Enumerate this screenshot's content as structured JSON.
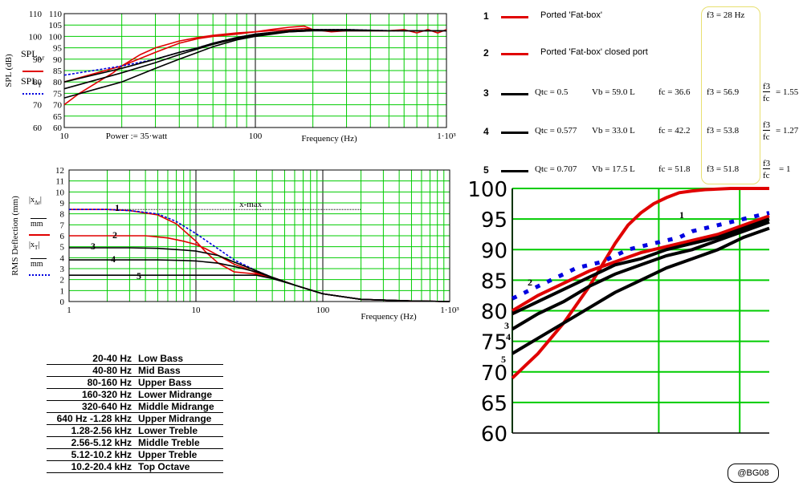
{
  "chart_data": [
    {
      "type": "line",
      "ylabel": "SPL (dB)",
      "xlabel": "Frequency (Hz)",
      "x_scale": "log",
      "xlim": [
        10,
        1000
      ],
      "ylim": [
        60,
        110
      ],
      "x_ticks": [
        "10",
        "100",
        "1·10³"
      ],
      "y_ticks": [
        "60",
        "65",
        "70",
        "75",
        "80",
        "85",
        "90",
        "95",
        "100",
        "105",
        "110"
      ],
      "y_inner_labels": [
        "110",
        "100",
        "90",
        "80",
        "70",
        "60"
      ],
      "annotation": "Power := 35·watt",
      "legend": [
        "SPL_o,r",
        "SPL_T"
      ],
      "series": [
        {
          "color": "#e00000",
          "x": [
            10,
            12,
            15,
            18,
            20,
            25,
            30,
            40,
            50,
            60,
            80,
            100,
            120,
            150,
            180,
            200,
            250,
            300,
            400,
            500,
            600,
            700,
            800,
            900,
            1000
          ],
          "y": [
            70,
            75,
            80,
            84,
            87,
            92,
            95,
            98,
            99.5,
            100.5,
            101.5,
            102,
            102.5,
            103,
            103.5,
            103,
            102.5,
            102.5,
            102.5,
            102.5,
            102.5,
            102.5,
            102.5,
            102.5,
            102.5
          ]
        },
        {
          "color": "#e00000",
          "x": [
            10,
            20,
            30,
            40,
            50,
            60,
            80,
            100,
            120,
            150,
            180,
            200,
            250,
            300,
            400,
            500,
            600,
            700,
            800,
            900,
            1000
          ],
          "y": [
            80,
            87,
            93,
            97,
            99,
            100,
            101,
            102,
            103,
            104,
            104.5,
            103,
            102,
            102.5,
            102.5,
            102.5,
            103,
            101.5,
            103,
            101.5,
            103
          ]
        },
        {
          "color": "#0000e0",
          "x": [
            10,
            20,
            30,
            40,
            50,
            60,
            80,
            100,
            150,
            200,
            300,
            500,
            700,
            1000
          ],
          "y": [
            83,
            87,
            90,
            93,
            95,
            97,
            99.5,
            101,
            102.5,
            103,
            103,
            102.5,
            102.5,
            102.5
          ]
        },
        {
          "color": "#000000",
          "x": [
            10,
            20,
            30,
            40,
            50,
            60,
            80,
            100,
            150,
            200,
            300,
            500,
            1000
          ],
          "y": [
            80,
            86,
            90,
            93,
            95,
            97,
            99.5,
            101,
            102.5,
            103,
            103,
            102.5,
            102.5
          ]
        },
        {
          "color": "#000000",
          "x": [
            10,
            20,
            30,
            40,
            50,
            60,
            80,
            100,
            150,
            200,
            300,
            500,
            1000
          ],
          "y": [
            77,
            84,
            88.5,
            92,
            94.5,
            96.5,
            99,
            100.5,
            102,
            102.5,
            102.5,
            102.5,
            102.5
          ]
        },
        {
          "color": "#000000",
          "x": [
            10,
            20,
            30,
            40,
            50,
            60,
            80,
            100,
            150,
            200,
            300,
            500,
            1000
          ],
          "y": [
            73,
            80,
            86,
            90,
            93,
            95.5,
            98.5,
            100,
            102,
            102.5,
            102.5,
            102.5,
            102.5
          ]
        }
      ]
    },
    {
      "type": "line",
      "ylabel": "RMS Deflection (mm)",
      "xlabel": "Frequency (Hz)",
      "x_scale": "log",
      "xlim": [
        1,
        1000
      ],
      "ylim": [
        0,
        12
      ],
      "x_ticks": [
        "1",
        "10",
        "100",
        "1·10³"
      ],
      "y_ticks": [
        "0",
        "1",
        "2",
        "3",
        "4",
        "5",
        "6",
        "7",
        "8",
        "9",
        "10",
        "11",
        "12"
      ],
      "annotation": "x-max",
      "xmax_value": 8.4,
      "curve_labels": [
        "1",
        "2",
        "3",
        "4",
        "5"
      ],
      "legend": [
        "|x_Δr| / mm",
        "|x_T| / mm"
      ],
      "series": [
        {
          "color": "#e00000",
          "x": [
            1,
            2,
            3,
            5,
            7,
            10,
            12,
            15,
            18,
            20,
            25,
            30,
            40,
            60,
            100,
            200,
            500,
            1000
          ],
          "y": [
            8.4,
            8.4,
            8.3,
            7.9,
            7.1,
            5.5,
            4.5,
            3.5,
            3,
            2.7,
            2.6,
            2.5,
            2.2,
            1.5,
            0.7,
            0.2,
            0.05,
            0
          ]
        },
        {
          "color": "#0000e0",
          "x": [
            1,
            2,
            3,
            5,
            7,
            10,
            15,
            20,
            30,
            40,
            60,
            100,
            200,
            500,
            1000
          ],
          "y": [
            8.4,
            8.4,
            8.3,
            8,
            7.3,
            6.2,
            4.8,
            3.8,
            2.8,
            2.2,
            1.5,
            0.7,
            0.2,
            0.05,
            0
          ]
        },
        {
          "color": "#e00000",
          "x": [
            1,
            2,
            4,
            6,
            8,
            10,
            12,
            15,
            20,
            25,
            30,
            40,
            60,
            100,
            200,
            500,
            1000
          ],
          "y": [
            6,
            6,
            6,
            5.8,
            5.5,
            5.2,
            4.8,
            4.2,
            3.4,
            3,
            2.6,
            2.2,
            1.5,
            0.7,
            0.2,
            0.05,
            0
          ]
        },
        {
          "color": "#000000",
          "x": [
            1,
            3,
            5,
            8,
            10,
            15,
            20,
            30,
            40,
            60,
            100,
            200,
            500,
            1000
          ],
          "y": [
            4.9,
            4.9,
            4.85,
            4.7,
            4.6,
            4.2,
            3.6,
            2.8,
            2.2,
            1.5,
            0.7,
            0.2,
            0.05,
            0
          ]
        },
        {
          "color": "#000000",
          "x": [
            1,
            3,
            5,
            8,
            10,
            15,
            20,
            30,
            40,
            60,
            100,
            200,
            500,
            1000
          ],
          "y": [
            3.8,
            3.8,
            3.8,
            3.75,
            3.7,
            3.5,
            3.2,
            2.7,
            2.2,
            1.5,
            0.7,
            0.2,
            0.05,
            0
          ]
        },
        {
          "color": "#000000",
          "x": [
            1,
            5,
            10,
            15,
            20,
            22,
            30,
            40,
            60,
            100,
            200,
            500,
            1000
          ],
          "y": [
            2.4,
            2.4,
            2.4,
            2.4,
            2.4,
            2.4,
            2.4,
            2.1,
            1.5,
            0.7,
            0.2,
            0.05,
            0
          ]
        }
      ]
    },
    {
      "type": "line",
      "ylim": [
        60,
        100
      ],
      "y_ticks": [
        "100",
        "95",
        "90",
        "85",
        "80",
        "75",
        "70",
        "65",
        "60"
      ],
      "curve_labels": [
        "1",
        "2",
        "3",
        "4",
        "5"
      ],
      "series": [
        {
          "color": "#e00000",
          "x": [
            0,
            0.05,
            0.1,
            0.15,
            0.2,
            0.25,
            0.3,
            0.35,
            0.4,
            0.45,
            0.5,
            0.55,
            0.6,
            0.65,
            0.7,
            0.75,
            0.8,
            0.85,
            0.9,
            1
          ],
          "y": [
            69,
            71,
            73,
            75.5,
            78,
            81,
            84,
            87.5,
            91,
            94,
            96,
            97.5,
            98.5,
            99.3,
            99.6,
            99.8,
            99.9,
            100,
            100,
            100
          ]
        },
        {
          "color": "#e00000",
          "x": [
            0,
            0.1,
            0.2,
            0.3,
            0.4,
            0.5,
            0.6,
            0.7,
            0.8,
            0.9,
            1
          ],
          "y": [
            80,
            82.5,
            84.5,
            86.5,
            88,
            89.5,
            90.5,
            91.5,
            92.5,
            94,
            95.5
          ]
        },
        {
          "color": "#0000e0",
          "x": [
            0,
            0.05,
            0.1,
            0.15,
            0.2,
            0.25,
            0.3,
            0.35,
            0.4,
            0.45,
            0.5,
            0.55,
            0.6,
            0.65,
            0.7,
            0.75,
            0.8,
            0.85,
            0.9,
            0.95,
            1
          ],
          "y": [
            82,
            83,
            84,
            85,
            86,
            87,
            87.5,
            88,
            89,
            90,
            90.5,
            91,
            91.5,
            92,
            93,
            93.5,
            94,
            94.5,
            95,
            95.5,
            96
          ]
        },
        {
          "color": "#000000",
          "x": [
            0,
            0.1,
            0.2,
            0.3,
            0.4,
            0.5,
            0.6,
            0.7,
            0.8,
            0.9,
            1
          ],
          "y": [
            79.5,
            81.5,
            83.5,
            85.5,
            87.5,
            88.5,
            90,
            91,
            92,
            93.5,
            95
          ]
        },
        {
          "color": "#000000",
          "x": [
            0,
            0.1,
            0.2,
            0.3,
            0.4,
            0.5,
            0.6,
            0.7,
            0.8,
            0.9,
            1
          ],
          "y": [
            77,
            79.5,
            81.5,
            84,
            86,
            87.5,
            89,
            90,
            91.5,
            93,
            94.5
          ]
        },
        {
          "color": "#000000",
          "x": [
            0,
            0.1,
            0.2,
            0.3,
            0.4,
            0.5,
            0.6,
            0.7,
            0.8,
            0.9,
            1
          ],
          "y": [
            73,
            75.5,
            78,
            80.5,
            83,
            85,
            87,
            88.5,
            90,
            92,
            93.5
          ]
        }
      ]
    }
  ],
  "legend_rows": [
    {
      "num": "1",
      "color": "#e00000",
      "label": "Ported 'Fat-box'",
      "f3": "f3 = 28  Hz"
    },
    {
      "num": "2",
      "color": "#e00000",
      "label": "Ported 'Fat-box' closed port"
    },
    {
      "num": "3",
      "color": "#000000",
      "qtc": "Qtc = 0.5",
      "vb": "Vb = 59.0  L",
      "fc": "fc = 36.6",
      "f3": "f3 = 56.9",
      "ratio_num": "f3",
      "ratio_den": "fc",
      "ratio_val": "= 1.55"
    },
    {
      "num": "4",
      "color": "#000000",
      "qtc": "Qtc = 0.577",
      "vb": "Vb = 33.0  L",
      "fc": "fc = 42.2",
      "f3": "f3 = 53.8",
      "ratio_num": "f3",
      "ratio_den": "fc",
      "ratio_val": "= 1.27"
    },
    {
      "num": "5",
      "color": "#000000",
      "qtc": "Qtc = 0.707",
      "vb": "Vb = 17.5  L",
      "fc": "fc = 51.8",
      "f3": "f3 = 51.8",
      "ratio_num": "f3",
      "ratio_den": "fc",
      "ratio_val": "= 1"
    }
  ],
  "bands": [
    {
      "range": "20-40 Hz",
      "name": "Low Bass"
    },
    {
      "range": "40-80 Hz",
      "name": "Mid Bass"
    },
    {
      "range": "80-160 Hz",
      "name": "Upper Bass"
    },
    {
      "range": "160-320 Hz",
      "name": "Lower Midrange"
    },
    {
      "range": "320-640 Hz",
      "name": "Middle Midrange"
    },
    {
      "range": "640 Hz -1.28 kHz",
      "name": "Upper Midrange"
    },
    {
      "range": "1.28-2.56 kHz",
      "name": "Lower Treble"
    },
    {
      "range": "2.56-5.12 kHz",
      "name": "Middle Treble"
    },
    {
      "range": "5.12-10.2 kHz",
      "name": "Upper Treble"
    },
    {
      "range": "10.2-20.4 kHz",
      "name": "Top Octave"
    }
  ],
  "badge": "@BG08"
}
